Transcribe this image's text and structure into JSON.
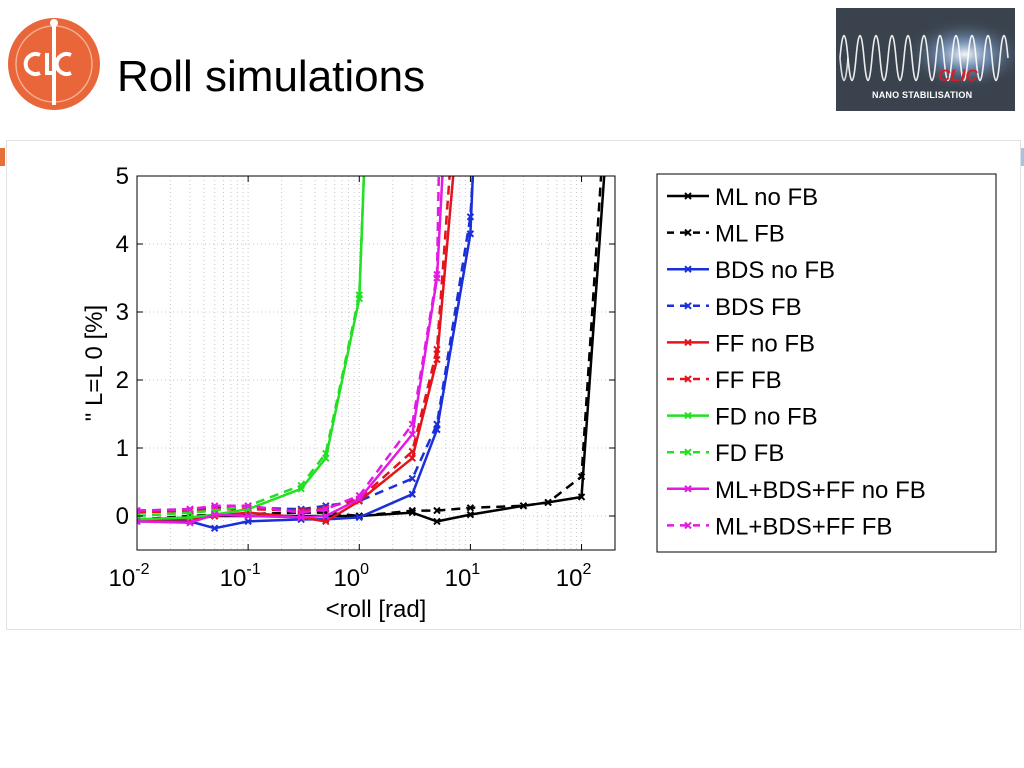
{
  "slide": {
    "title": "Roll simulations"
  },
  "logo": {
    "text": "CLIC",
    "color": "#e8663a"
  },
  "banner": {
    "clic_text": "CLIC",
    "subtitle": "NANO STABILISATION"
  },
  "chart_data": {
    "type": "line",
    "xscale": "log",
    "xlabel": "<roll [rad]",
    "ylabel": "\" L=L 0 [%]",
    "xlim": [
      0.01,
      200
    ],
    "ylim": [
      -0.5,
      5
    ],
    "x_ticks": [
      0.01,
      0.1,
      1,
      10,
      100
    ],
    "x_tick_labels": [
      "10-2",
      "10-1",
      "100",
      "101",
      "102"
    ],
    "y_ticks": [
      0,
      1,
      2,
      3,
      4,
      5
    ],
    "y_tick_labels": [
      "0",
      "1",
      "2",
      "3",
      "4",
      "5"
    ],
    "grid": true,
    "legend_position": "right",
    "series": [
      {
        "name": "ML no FB",
        "color": "#000000",
        "dash": "solid",
        "x": [
          0.01,
          0.03,
          0.05,
          0.1,
          0.3,
          0.5,
          1,
          3,
          5,
          10,
          30,
          50,
          100,
          160
        ],
        "y": [
          -0.05,
          -0.05,
          0.0,
          0.0,
          0.0,
          0.0,
          0.0,
          0.05,
          -0.08,
          0.02,
          0.15,
          0.2,
          0.28,
          5.0
        ]
      },
      {
        "name": "ML FB",
        "color": "#000000",
        "dash": "dashed",
        "x": [
          0.01,
          0.03,
          0.05,
          0.1,
          0.3,
          0.5,
          1,
          3,
          5,
          10,
          30,
          50,
          100,
          150
        ],
        "y": [
          -0.05,
          0.0,
          0.02,
          0.03,
          0.05,
          0.05,
          0.0,
          0.08,
          0.08,
          0.12,
          0.15,
          0.2,
          0.58,
          5.0
        ]
      },
      {
        "name": "BDS no FB",
        "color": "#1a2fd9",
        "dash": "solid",
        "x": [
          0.01,
          0.03,
          0.05,
          0.1,
          0.3,
          0.5,
          1,
          3,
          5,
          10,
          10.5
        ],
        "y": [
          -0.08,
          -0.08,
          -0.18,
          -0.08,
          -0.05,
          -0.05,
          -0.02,
          0.32,
          1.27,
          4.15,
          5.0
        ]
      },
      {
        "name": "BDS FB",
        "color": "#1a2fd9",
        "dash": "dashed",
        "x": [
          0.01,
          0.03,
          0.05,
          0.1,
          0.3,
          0.5,
          1,
          3,
          5,
          10,
          10.5
        ],
        "y": [
          0.08,
          0.1,
          0.12,
          0.12,
          0.1,
          0.15,
          0.22,
          0.55,
          1.35,
          4.4,
          5.0
        ]
      },
      {
        "name": "FF no FB",
        "color": "#e3141c",
        "dash": "solid",
        "x": [
          0.01,
          0.03,
          0.05,
          0.1,
          0.3,
          0.5,
          1,
          3,
          5,
          7
        ],
        "y": [
          -0.05,
          -0.05,
          0.0,
          0.05,
          -0.02,
          -0.08,
          0.22,
          0.85,
          2.3,
          5.0
        ]
      },
      {
        "name": "FF FB",
        "color": "#e3141c",
        "dash": "dashed",
        "x": [
          0.01,
          0.03,
          0.05,
          0.1,
          0.3,
          0.5,
          1,
          3,
          5,
          6.5
        ],
        "y": [
          0.05,
          0.08,
          0.1,
          0.1,
          0.08,
          0.12,
          0.25,
          0.95,
          2.45,
          5.0
        ]
      },
      {
        "name": "FD no FB",
        "color": "#22e022",
        "dash": "solid",
        "x": [
          0.01,
          0.03,
          0.05,
          0.1,
          0.3,
          0.5,
          1,
          1.1
        ],
        "y": [
          -0.05,
          -0.02,
          0.02,
          0.1,
          0.4,
          0.85,
          3.2,
          5.0
        ]
      },
      {
        "name": "FD FB",
        "color": "#22e022",
        "dash": "dashed",
        "x": [
          0.01,
          0.03,
          0.05,
          0.1,
          0.3,
          0.5,
          1,
          1.1
        ],
        "y": [
          0.0,
          0.05,
          0.08,
          0.15,
          0.45,
          0.92,
          3.25,
          5.0
        ]
      },
      {
        "name": "ML+BDS+FF no FB",
        "color": "#e31ae3",
        "dash": "solid",
        "x": [
          0.01,
          0.03,
          0.05,
          0.1,
          0.3,
          0.5,
          1,
          3,
          5,
          5.6
        ],
        "y": [
          -0.08,
          -0.1,
          0.02,
          0.0,
          -0.02,
          0.0,
          0.25,
          1.2,
          3.5,
          5.0
        ]
      },
      {
        "name": "ML+BDS+FF FB",
        "color": "#e31ae3",
        "dash": "dashed",
        "x": [
          0.01,
          0.03,
          0.05,
          0.1,
          0.3,
          0.5,
          1,
          3,
          5,
          5.2
        ],
        "y": [
          0.08,
          0.1,
          0.15,
          0.15,
          0.05,
          0.1,
          0.3,
          1.35,
          3.55,
          5.0
        ]
      }
    ]
  }
}
